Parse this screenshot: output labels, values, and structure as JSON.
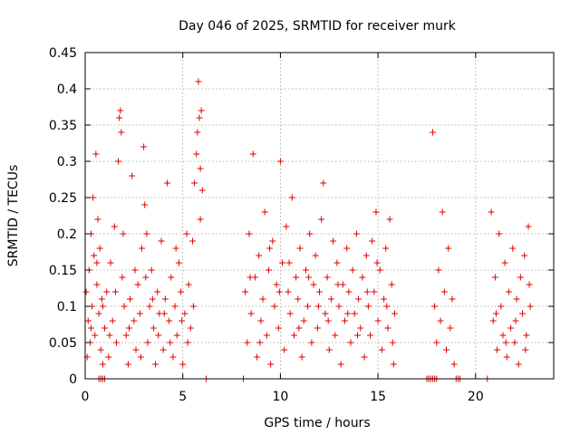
{
  "chart_data": {
    "type": "scatter",
    "title": "Day 046 of 2025, SRMTID for receiver murk",
    "xlabel": "GPS time / hours",
    "ylabel": "SRMTID / TECUs",
    "xlim": [
      0,
      24
    ],
    "ylim": [
      0,
      0.45
    ],
    "x_ticks": [
      "0",
      "5",
      "10",
      "15",
      "20"
    ],
    "x_tick_values": [
      0,
      5,
      10,
      15,
      20
    ],
    "y_ticks": [
      "0",
      "0.05",
      "0.1",
      "0.15",
      "0.2",
      "0.25",
      "0.3",
      "0.35",
      "0.4",
      "0.45"
    ],
    "y_tick_values": [
      0,
      0.05,
      0.1,
      0.15,
      0.2,
      0.25,
      0.3,
      0.35,
      0.4,
      0.45
    ],
    "grid": true,
    "marker": "+",
    "color": "#e00000",
    "series": [
      {
        "name": "SRMTID",
        "points": [
          [
            0.05,
            0.12
          ],
          [
            0.1,
            0.03
          ],
          [
            0.15,
            0.08
          ],
          [
            0.2,
            0.15
          ],
          [
            0.25,
            0.05
          ],
          [
            0.3,
            0.2
          ],
          [
            0.35,
            0.1
          ],
          [
            0.4,
            0.25
          ],
          [
            0.45,
            0.17
          ],
          [
            0.5,
            0.06
          ],
          [
            0.55,
            0.31
          ],
          [
            0.6,
            0.13
          ],
          [
            0.65,
            0.22
          ],
          [
            0.7,
            0.09
          ],
          [
            0.75,
            0.18
          ],
          [
            0.8,
            0.04
          ],
          [
            0.85,
            0.11
          ],
          [
            0.9,
            0.02
          ],
          [
            1.0,
            0.07
          ],
          [
            1.1,
            0.12
          ],
          [
            1.2,
            0.03
          ],
          [
            1.3,
            0.16
          ],
          [
            1.4,
            0.08
          ],
          [
            1.5,
            0.21
          ],
          [
            1.6,
            0.05
          ],
          [
            1.7,
            0.3
          ],
          [
            1.75,
            0.36
          ],
          [
            1.8,
            0.37
          ],
          [
            1.85,
            0.34
          ],
          [
            1.9,
            0.14
          ],
          [
            2.0,
            0.1
          ],
          [
            2.1,
            0.06
          ],
          [
            2.2,
            0.02
          ],
          [
            2.3,
            0.11
          ],
          [
            2.4,
            0.28
          ],
          [
            2.5,
            0.08
          ],
          [
            2.6,
            0.04
          ],
          [
            2.7,
            0.13
          ],
          [
            2.8,
            0.09
          ],
          [
            2.9,
            0.18
          ],
          [
            3.0,
            0.32
          ],
          [
            3.05,
            0.24
          ],
          [
            3.1,
            0.14
          ],
          [
            3.2,
            0.05
          ],
          [
            3.3,
            0.1
          ],
          [
            3.4,
            0.15
          ],
          [
            3.5,
            0.07
          ],
          [
            3.6,
            0.02
          ],
          [
            3.7,
            0.12
          ],
          [
            3.8,
            0.09
          ],
          [
            3.9,
            0.19
          ],
          [
            4.0,
            0.04
          ],
          [
            4.1,
            0.11
          ],
          [
            4.2,
            0.27
          ],
          [
            4.3,
            0.08
          ],
          [
            4.4,
            0.14
          ],
          [
            4.5,
            0.03
          ],
          [
            4.6,
            0.1
          ],
          [
            4.7,
            0.06
          ],
          [
            4.8,
            0.16
          ],
          [
            4.9,
            0.12
          ],
          [
            5.0,
            0.02
          ],
          [
            5.1,
            0.09
          ],
          [
            5.2,
            0.2
          ],
          [
            5.3,
            0.13
          ],
          [
            5.4,
            0.07
          ],
          [
            5.5,
            0.19
          ],
          [
            5.6,
            0.27
          ],
          [
            5.7,
            0.31
          ],
          [
            5.75,
            0.34
          ],
          [
            5.8,
            0.41
          ],
          [
            5.85,
            0.36
          ],
          [
            5.9,
            0.29
          ],
          [
            5.95,
            0.37
          ],
          [
            6.0,
            0.26
          ],
          [
            0.3,
            0.07
          ],
          [
            0.6,
            0.16
          ],
          [
            0.9,
            0.1
          ],
          [
            1.25,
            0.06
          ],
          [
            1.55,
            0.12
          ],
          [
            1.95,
            0.2
          ],
          [
            2.25,
            0.07
          ],
          [
            2.55,
            0.15
          ],
          [
            2.85,
            0.03
          ],
          [
            3.15,
            0.2
          ],
          [
            3.45,
            0.11
          ],
          [
            3.75,
            0.06
          ],
          [
            4.05,
            0.09
          ],
          [
            4.35,
            0.05
          ],
          [
            4.65,
            0.18
          ],
          [
            4.95,
            0.08
          ],
          [
            5.25,
            0.05
          ],
          [
            5.55,
            0.1
          ],
          [
            5.9,
            0.22
          ],
          [
            8.2,
            0.12
          ],
          [
            8.3,
            0.05
          ],
          [
            8.4,
            0.2
          ],
          [
            8.5,
            0.09
          ],
          [
            8.6,
            0.31
          ],
          [
            8.7,
            0.14
          ],
          [
            8.8,
            0.03
          ],
          [
            8.9,
            0.17
          ],
          [
            9.0,
            0.08
          ],
          [
            9.1,
            0.11
          ],
          [
            9.2,
            0.23
          ],
          [
            9.3,
            0.06
          ],
          [
            9.4,
            0.15
          ],
          [
            9.5,
            0.02
          ],
          [
            9.6,
            0.19
          ],
          [
            9.7,
            0.1
          ],
          [
            9.8,
            0.13
          ],
          [
            9.9,
            0.07
          ],
          [
            10.0,
            0.3
          ],
          [
            10.1,
            0.16
          ],
          [
            10.2,
            0.04
          ],
          [
            10.3,
            0.21
          ],
          [
            10.4,
            0.12
          ],
          [
            10.5,
            0.09
          ],
          [
            10.6,
            0.25
          ],
          [
            10.7,
            0.06
          ],
          [
            10.8,
            0.14
          ],
          [
            10.9,
            0.11
          ],
          [
            11.0,
            0.18
          ],
          [
            11.1,
            0.03
          ],
          [
            11.2,
            0.08
          ],
          [
            11.3,
            0.15
          ],
          [
            11.4,
            0.1
          ],
          [
            11.5,
            0.2
          ],
          [
            11.6,
            0.05
          ],
          [
            11.7,
            0.13
          ],
          [
            11.8,
            0.17
          ],
          [
            11.9,
            0.07
          ],
          [
            12.0,
            0.12
          ],
          [
            12.1,
            0.22
          ],
          [
            12.2,
            0.27
          ],
          [
            12.3,
            0.09
          ],
          [
            12.4,
            0.14
          ],
          [
            12.5,
            0.04
          ],
          [
            12.6,
            0.11
          ],
          [
            12.7,
            0.19
          ],
          [
            12.8,
            0.06
          ],
          [
            12.9,
            0.16
          ],
          [
            13.0,
            0.1
          ],
          [
            13.1,
            0.02
          ],
          [
            13.2,
            0.13
          ],
          [
            13.3,
            0.08
          ],
          [
            13.4,
            0.18
          ],
          [
            13.5,
            0.12
          ],
          [
            13.6,
            0.05
          ],
          [
            13.7,
            0.15
          ],
          [
            13.8,
            0.09
          ],
          [
            13.9,
            0.2
          ],
          [
            14.0,
            0.11
          ],
          [
            14.1,
            0.07
          ],
          [
            14.2,
            0.14
          ],
          [
            14.3,
            0.03
          ],
          [
            14.4,
            0.17
          ],
          [
            14.5,
            0.1
          ],
          [
            14.6,
            0.06
          ],
          [
            14.7,
            0.19
          ],
          [
            14.8,
            0.12
          ],
          [
            14.9,
            0.23
          ],
          [
            15.0,
            0.08
          ],
          [
            15.1,
            0.15
          ],
          [
            15.2,
            0.04
          ],
          [
            15.3,
            0.11
          ],
          [
            15.4,
            0.18
          ],
          [
            15.5,
            0.07
          ],
          [
            15.6,
            0.22
          ],
          [
            15.7,
            0.13
          ],
          [
            15.8,
            0.02
          ],
          [
            15.85,
            0.09
          ],
          [
            8.45,
            0.14
          ],
          [
            8.95,
            0.05
          ],
          [
            9.45,
            0.18
          ],
          [
            9.95,
            0.12
          ],
          [
            10.45,
            0.16
          ],
          [
            10.95,
            0.07
          ],
          [
            11.45,
            0.14
          ],
          [
            11.95,
            0.1
          ],
          [
            12.45,
            0.08
          ],
          [
            12.95,
            0.13
          ],
          [
            13.45,
            0.09
          ],
          [
            13.95,
            0.06
          ],
          [
            14.45,
            0.12
          ],
          [
            14.95,
            0.16
          ],
          [
            15.45,
            0.1
          ],
          [
            15.75,
            0.05
          ],
          [
            17.8,
            0.34
          ],
          [
            17.9,
            0.1
          ],
          [
            18.0,
            0.05
          ],
          [
            18.1,
            0.15
          ],
          [
            18.2,
            0.08
          ],
          [
            18.3,
            0.23
          ],
          [
            18.4,
            0.12
          ],
          [
            18.5,
            0.04
          ],
          [
            18.6,
            0.18
          ],
          [
            18.7,
            0.07
          ],
          [
            18.8,
            0.11
          ],
          [
            18.9,
            0.02
          ],
          [
            20.8,
            0.23
          ],
          [
            20.9,
            0.08
          ],
          [
            21.0,
            0.14
          ],
          [
            21.1,
            0.04
          ],
          [
            21.2,
            0.2
          ],
          [
            21.3,
            0.1
          ],
          [
            21.4,
            0.06
          ],
          [
            21.5,
            0.16
          ],
          [
            21.6,
            0.03
          ],
          [
            21.7,
            0.12
          ],
          [
            21.8,
            0.07
          ],
          [
            21.9,
            0.18
          ],
          [
            22.0,
            0.05
          ],
          [
            22.1,
            0.11
          ],
          [
            22.2,
            0.02
          ],
          [
            22.3,
            0.14
          ],
          [
            22.4,
            0.09
          ],
          [
            22.5,
            0.17
          ],
          [
            22.6,
            0.06
          ],
          [
            22.7,
            0.21
          ],
          [
            22.75,
            0.13
          ],
          [
            22.8,
            0.1
          ],
          [
            21.05,
            0.09
          ],
          [
            21.55,
            0.05
          ],
          [
            22.05,
            0.08
          ],
          [
            22.55,
            0.04
          ],
          [
            0.7,
            0.0
          ],
          [
            0.8,
            0.0
          ],
          [
            0.9,
            0.0
          ],
          [
            1.0,
            0.0
          ],
          [
            6.2,
            0.0
          ],
          [
            8.1,
            0.0
          ],
          [
            17.5,
            0.0
          ],
          [
            17.6,
            0.0
          ],
          [
            17.7,
            0.0
          ],
          [
            17.8,
            0.0
          ],
          [
            17.9,
            0.0
          ],
          [
            18.0,
            0.0
          ],
          [
            19.0,
            0.0
          ],
          [
            19.1,
            0.0
          ],
          [
            19.2,
            0.0
          ],
          [
            20.6,
            0.0
          ]
        ]
      }
    ]
  }
}
